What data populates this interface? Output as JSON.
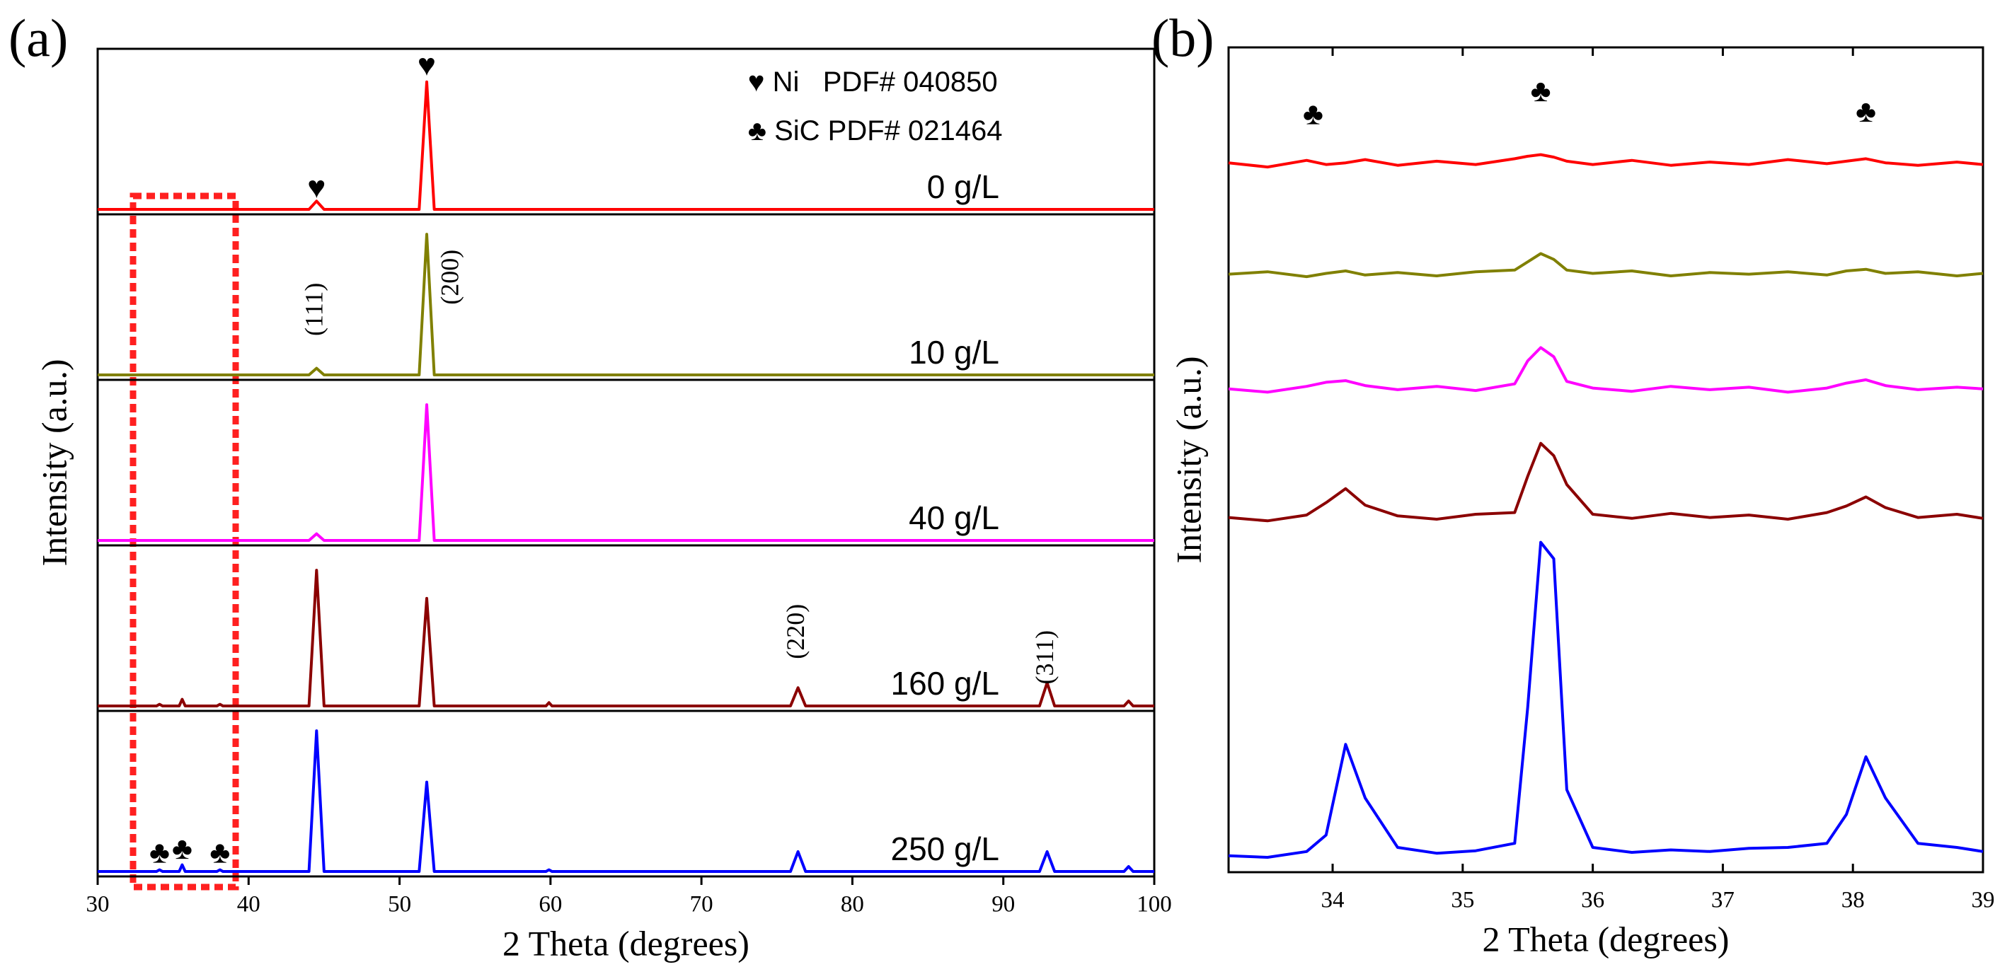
{
  "chart_data": [
    {
      "type": "line",
      "layout": "stacked",
      "label": "(a)",
      "xlabel": "2 Theta (degrees)",
      "ylabel": "Intensity (a.u.)",
      "xlim": [
        30,
        100
      ],
      "xticks": [
        30,
        40,
        50,
        60,
        70,
        80,
        90,
        100
      ],
      "ylim": [
        0,
        100
      ],
      "annotations": [
        "♥",
        "♥",
        "(111)",
        "(200)",
        "(220)",
        "(311)",
        "♣",
        "♣",
        "♣",
        "♥ Ni   PDF# 040850",
        "♣ SiC PDF# 021464"
      ],
      "x": [
        30,
        33.9,
        34.1,
        34.3,
        35.4,
        35.6,
        35.8,
        37.9,
        38.1,
        38.3,
        44.0,
        44.5,
        45.0,
        51.3,
        51.8,
        52.3,
        59.7,
        59.9,
        60.1,
        75.9,
        76.4,
        76.9,
        92.4,
        92.9,
        93.4,
        98.0,
        98.3,
        98.6,
        100
      ],
      "series": [
        {
          "name": "0 g/L",
          "color": "#ff0000",
          "values": [
            3,
            3,
            3,
            3,
            3,
            3,
            3,
            3,
            3,
            3,
            3,
            8,
            3,
            3,
            80,
            3,
            3,
            3,
            3,
            3,
            3,
            3,
            3,
            3,
            3,
            3,
            3,
            3,
            3
          ]
        },
        {
          "name": "10 g/L",
          "color": "#808000",
          "values": [
            3,
            3,
            3,
            3,
            3,
            3,
            3,
            3,
            3,
            3,
            3,
            7,
            3,
            3,
            88,
            3,
            3,
            3,
            3,
            3,
            3,
            3,
            3,
            3,
            3,
            3,
            3,
            3,
            3
          ]
        },
        {
          "name": "40 g/L",
          "color": "#ff00ff",
          "values": [
            3,
            3,
            3,
            3,
            3,
            3,
            3,
            3,
            3,
            3,
            3,
            7,
            3,
            3,
            85,
            3,
            3,
            3,
            3,
            3,
            3,
            3,
            3,
            3,
            3,
            3,
            3,
            3,
            3
          ]
        },
        {
          "name": "160 g/L",
          "color": "#8b0000",
          "values": [
            3,
            3,
            4,
            3,
            3,
            7,
            3,
            3,
            4,
            3,
            3,
            85,
            3,
            3,
            68,
            3,
            3,
            5,
            3,
            3,
            14,
            3,
            3,
            17,
            3,
            3,
            6,
            3,
            3
          ]
        },
        {
          "name": "250 g/L",
          "color": "#0000ff",
          "values": [
            3,
            3,
            4,
            3,
            3,
            7,
            3,
            3,
            4,
            3,
            3,
            88,
            3,
            3,
            57,
            3,
            3,
            4,
            3,
            3,
            15,
            3,
            3,
            15,
            3,
            3,
            6,
            3,
            3
          ]
        }
      ]
    },
    {
      "type": "line",
      "layout": "overlay",
      "label": "(b)",
      "xlabel": "2 Theta (degrees)",
      "ylabel": "Intensity (a.u.)",
      "xlim": [
        33.2,
        39
      ],
      "xticks": [
        34,
        35,
        36,
        37,
        38,
        39
      ],
      "ylim": [
        0,
        100
      ],
      "annotations": [
        "♣",
        "♣",
        "♣"
      ],
      "x": [
        33.2,
        33.5,
        33.8,
        33.95,
        34.1,
        34.25,
        34.5,
        34.8,
        35.1,
        35.4,
        35.5,
        35.6,
        35.7,
        35.8,
        36.0,
        36.3,
        36.6,
        36.9,
        37.2,
        37.5,
        37.8,
        37.95,
        38.1,
        38.25,
        38.5,
        38.8,
        39.0
      ],
      "series": [
        {
          "color": "#ff0000",
          "values": [
            86,
            85.5,
            86.3,
            85.8,
            86,
            86.4,
            85.7,
            86.2,
            85.8,
            86.5,
            86.8,
            87,
            86.7,
            86.2,
            85.8,
            86.3,
            85.7,
            86.1,
            85.8,
            86.4,
            85.9,
            86.2,
            86.5,
            86,
            85.7,
            86.1,
            85.8
          ]
        },
        {
          "color": "#808000",
          "values": [
            72.5,
            72.8,
            72.2,
            72.6,
            72.9,
            72.4,
            72.7,
            72.3,
            72.8,
            73,
            74,
            75,
            74.3,
            73,
            72.6,
            72.9,
            72.3,
            72.7,
            72.5,
            72.8,
            72.4,
            72.9,
            73.1,
            72.6,
            72.8,
            72.3,
            72.6
          ]
        },
        {
          "color": "#ff00ff",
          "values": [
            58.6,
            58.2,
            58.9,
            59.4,
            59.6,
            59,
            58.5,
            58.9,
            58.4,
            59.2,
            62,
            63.6,
            62.5,
            59.5,
            58.7,
            58.3,
            58.9,
            58.5,
            58.8,
            58.2,
            58.7,
            59.3,
            59.7,
            59,
            58.5,
            58.8,
            58.6
          ]
        },
        {
          "color": "#8b0000",
          "values": [
            43,
            42.6,
            43.3,
            44.8,
            46.5,
            44.5,
            43.2,
            42.8,
            43.4,
            43.6,
            48,
            52,
            50.5,
            47,
            43.4,
            42.9,
            43.5,
            43,
            43.3,
            42.8,
            43.6,
            44.4,
            45.5,
            44.2,
            43,
            43.4,
            42.9
          ]
        },
        {
          "color": "#0000ff",
          "values": [
            2,
            1.8,
            2.5,
            4.5,
            15.5,
            9,
            3,
            2.3,
            2.6,
            3.5,
            20,
            40,
            38,
            10,
            3,
            2.4,
            2.7,
            2.5,
            2.9,
            3,
            3.5,
            7,
            14,
            9,
            3.5,
            3,
            2.5
          ]
        }
      ]
    }
  ]
}
